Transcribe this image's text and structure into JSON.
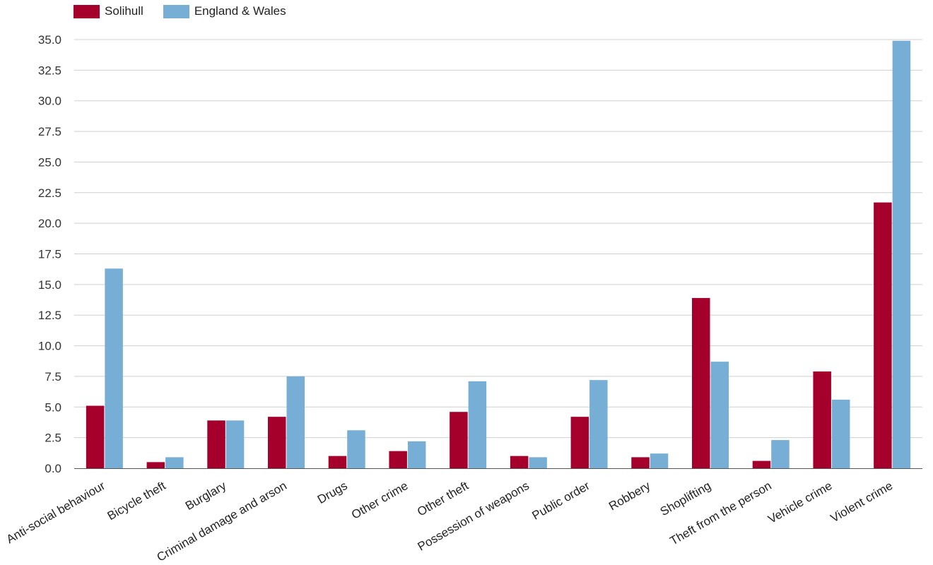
{
  "chart_data": {
    "type": "bar",
    "categories": [
      "Anti-social behaviour",
      "Bicycle theft",
      "Burglary",
      "Criminal damage and arson",
      "Drugs",
      "Other crime",
      "Other theft",
      "Possession of weapons",
      "Public order",
      "Robbery",
      "Shoplifting",
      "Theft from the person",
      "Vehicle crime",
      "Violent crime"
    ],
    "series": [
      {
        "name": "Solihull",
        "color": "#a5002b",
        "values": [
          5.1,
          0.5,
          3.9,
          4.2,
          1.0,
          1.4,
          4.6,
          1.0,
          4.2,
          0.9,
          13.9,
          0.6,
          7.9,
          21.7
        ]
      },
      {
        "name": "England & Wales",
        "color": "#76aed5",
        "values": [
          16.3,
          0.9,
          3.9,
          7.5,
          3.1,
          2.2,
          7.1,
          0.9,
          7.2,
          1.2,
          8.7,
          2.3,
          5.6,
          34.9
        ]
      }
    ],
    "title": "",
    "xlabel": "",
    "ylabel": "",
    "ylim": [
      0,
      35
    ],
    "yticks": [
      "0.0",
      "2.5",
      "5.0",
      "7.5",
      "10.0",
      "12.5",
      "15.0",
      "17.5",
      "20.0",
      "22.5",
      "25.0",
      "27.5",
      "30.0",
      "32.5",
      "35.0"
    ],
    "grid": true,
    "legend_position": "top-left"
  }
}
